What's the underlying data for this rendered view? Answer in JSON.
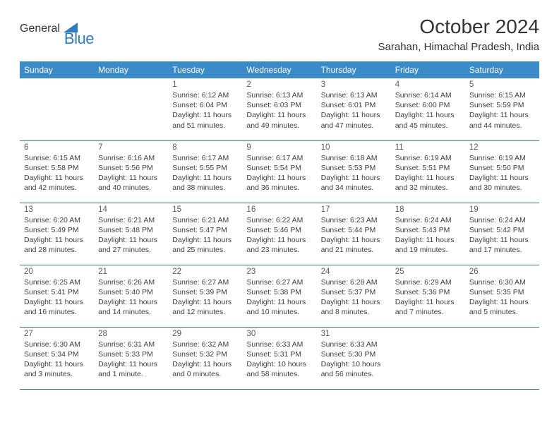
{
  "logo": {
    "general": "General",
    "blue": "Blue"
  },
  "title": "October 2024",
  "location": "Sarahan, Himachal Pradesh, India",
  "colors": {
    "header_bg": "#3b8bc9",
    "header_text": "#ffffff",
    "row_border": "#2d6fa8",
    "logo_gray": "#5a5a5a",
    "logo_blue": "#2e7cc2",
    "body_text": "#404040"
  },
  "weekdays": [
    "Sunday",
    "Monday",
    "Tuesday",
    "Wednesday",
    "Thursday",
    "Friday",
    "Saturday"
  ],
  "weeks": [
    [
      null,
      null,
      {
        "n": "1",
        "sr": "6:12 AM",
        "ss": "6:04 PM",
        "dl": "11 hours and 51 minutes."
      },
      {
        "n": "2",
        "sr": "6:13 AM",
        "ss": "6:03 PM",
        "dl": "11 hours and 49 minutes."
      },
      {
        "n": "3",
        "sr": "6:13 AM",
        "ss": "6:01 PM",
        "dl": "11 hours and 47 minutes."
      },
      {
        "n": "4",
        "sr": "6:14 AM",
        "ss": "6:00 PM",
        "dl": "11 hours and 45 minutes."
      },
      {
        "n": "5",
        "sr": "6:15 AM",
        "ss": "5:59 PM",
        "dl": "11 hours and 44 minutes."
      }
    ],
    [
      {
        "n": "6",
        "sr": "6:15 AM",
        "ss": "5:58 PM",
        "dl": "11 hours and 42 minutes."
      },
      {
        "n": "7",
        "sr": "6:16 AM",
        "ss": "5:56 PM",
        "dl": "11 hours and 40 minutes."
      },
      {
        "n": "8",
        "sr": "6:17 AM",
        "ss": "5:55 PM",
        "dl": "11 hours and 38 minutes."
      },
      {
        "n": "9",
        "sr": "6:17 AM",
        "ss": "5:54 PM",
        "dl": "11 hours and 36 minutes."
      },
      {
        "n": "10",
        "sr": "6:18 AM",
        "ss": "5:53 PM",
        "dl": "11 hours and 34 minutes."
      },
      {
        "n": "11",
        "sr": "6:19 AM",
        "ss": "5:51 PM",
        "dl": "11 hours and 32 minutes."
      },
      {
        "n": "12",
        "sr": "6:19 AM",
        "ss": "5:50 PM",
        "dl": "11 hours and 30 minutes."
      }
    ],
    [
      {
        "n": "13",
        "sr": "6:20 AM",
        "ss": "5:49 PM",
        "dl": "11 hours and 28 minutes."
      },
      {
        "n": "14",
        "sr": "6:21 AM",
        "ss": "5:48 PM",
        "dl": "11 hours and 27 minutes."
      },
      {
        "n": "15",
        "sr": "6:21 AM",
        "ss": "5:47 PM",
        "dl": "11 hours and 25 minutes."
      },
      {
        "n": "16",
        "sr": "6:22 AM",
        "ss": "5:46 PM",
        "dl": "11 hours and 23 minutes."
      },
      {
        "n": "17",
        "sr": "6:23 AM",
        "ss": "5:44 PM",
        "dl": "11 hours and 21 minutes."
      },
      {
        "n": "18",
        "sr": "6:24 AM",
        "ss": "5:43 PM",
        "dl": "11 hours and 19 minutes."
      },
      {
        "n": "19",
        "sr": "6:24 AM",
        "ss": "5:42 PM",
        "dl": "11 hours and 17 minutes."
      }
    ],
    [
      {
        "n": "20",
        "sr": "6:25 AM",
        "ss": "5:41 PM",
        "dl": "11 hours and 16 minutes."
      },
      {
        "n": "21",
        "sr": "6:26 AM",
        "ss": "5:40 PM",
        "dl": "11 hours and 14 minutes."
      },
      {
        "n": "22",
        "sr": "6:27 AM",
        "ss": "5:39 PM",
        "dl": "11 hours and 12 minutes."
      },
      {
        "n": "23",
        "sr": "6:27 AM",
        "ss": "5:38 PM",
        "dl": "11 hours and 10 minutes."
      },
      {
        "n": "24",
        "sr": "6:28 AM",
        "ss": "5:37 PM",
        "dl": "11 hours and 8 minutes."
      },
      {
        "n": "25",
        "sr": "6:29 AM",
        "ss": "5:36 PM",
        "dl": "11 hours and 7 minutes."
      },
      {
        "n": "26",
        "sr": "6:30 AM",
        "ss": "5:35 PM",
        "dl": "11 hours and 5 minutes."
      }
    ],
    [
      {
        "n": "27",
        "sr": "6:30 AM",
        "ss": "5:34 PM",
        "dl": "11 hours and 3 minutes."
      },
      {
        "n": "28",
        "sr": "6:31 AM",
        "ss": "5:33 PM",
        "dl": "11 hours and 1 minute."
      },
      {
        "n": "29",
        "sr": "6:32 AM",
        "ss": "5:32 PM",
        "dl": "11 hours and 0 minutes."
      },
      {
        "n": "30",
        "sr": "6:33 AM",
        "ss": "5:31 PM",
        "dl": "10 hours and 58 minutes."
      },
      {
        "n": "31",
        "sr": "6:33 AM",
        "ss": "5:30 PM",
        "dl": "10 hours and 56 minutes."
      },
      null,
      null
    ]
  ],
  "labels": {
    "sunrise": "Sunrise:",
    "sunset": "Sunset:",
    "daylight": "Daylight:"
  }
}
